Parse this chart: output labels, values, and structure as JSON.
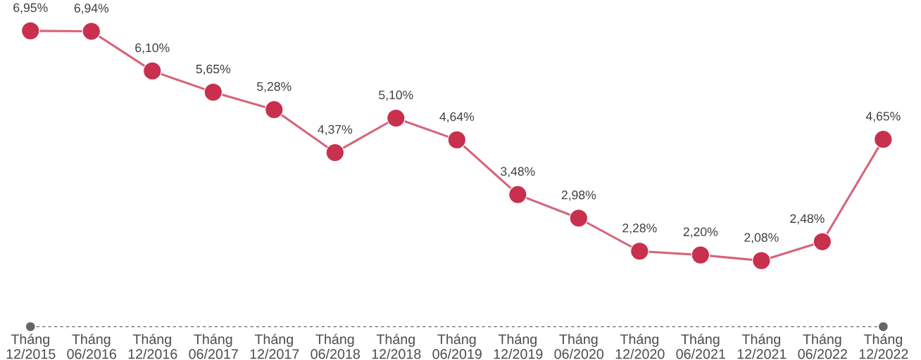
{
  "chart_data": {
    "type": "line",
    "categories": [
      "Tháng 12/2015",
      "Tháng 06/2016",
      "Tháng 12/2016",
      "Tháng 06/2017",
      "Tháng 12/2017",
      "Tháng 06/2018",
      "Tháng 12/2018",
      "Tháng 06/2019",
      "Tháng 12/2019",
      "Tháng 06/2020",
      "Tháng 12/2020",
      "Tháng 06/2021",
      "Tháng 12/2021",
      "Tháng 06/2022",
      "Tháng 12/2022"
    ],
    "values": [
      6.95,
      6.94,
      6.1,
      5.65,
      5.28,
      4.37,
      5.1,
      4.64,
      3.48,
      2.98,
      2.28,
      2.2,
      2.08,
      2.48,
      4.65
    ],
    "value_labels": [
      "6,95%",
      "6,94%",
      "6,10%",
      "5,65%",
      "5,28%",
      "4,37%",
      "5,10%",
      "4,64%",
      "3,48%",
      "2,98%",
      "2,28%",
      "2,20%",
      "2,08%",
      "2,48%",
      "4,65%"
    ],
    "color": "#c8304e",
    "marker": "circle",
    "line_style": "solid",
    "grid": false
  }
}
